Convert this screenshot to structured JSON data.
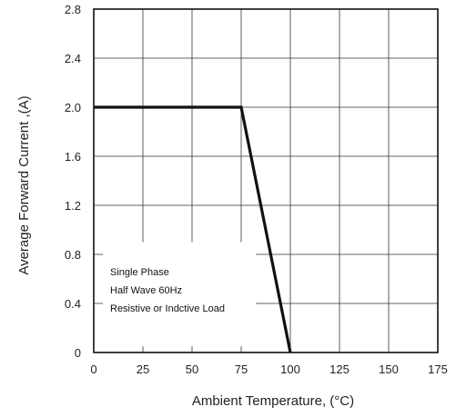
{
  "chart_data": {
    "type": "line",
    "title": "",
    "xlabel": "Ambient Temperature, (°C)",
    "ylabel": "Average Forward Current ,(A)",
    "xlim": [
      0,
      175
    ],
    "ylim": [
      0,
      2.8
    ],
    "x_ticks": [
      "0",
      "25",
      "50",
      "75",
      "100",
      "125",
      "150",
      "175"
    ],
    "y_ticks": [
      "0",
      "0.4",
      "0.8",
      "1.2",
      "1.6",
      "2.0",
      "2.4",
      "2.8"
    ],
    "grid": true,
    "series": [
      {
        "x": [
          0,
          75,
          100
        ],
        "y": [
          2.0,
          2.0,
          0
        ],
        "color": "#111111"
      }
    ],
    "annotations": [
      "Single Phase",
      "Half Wave 60Hz",
      "Resistive or Indctive Load"
    ]
  }
}
